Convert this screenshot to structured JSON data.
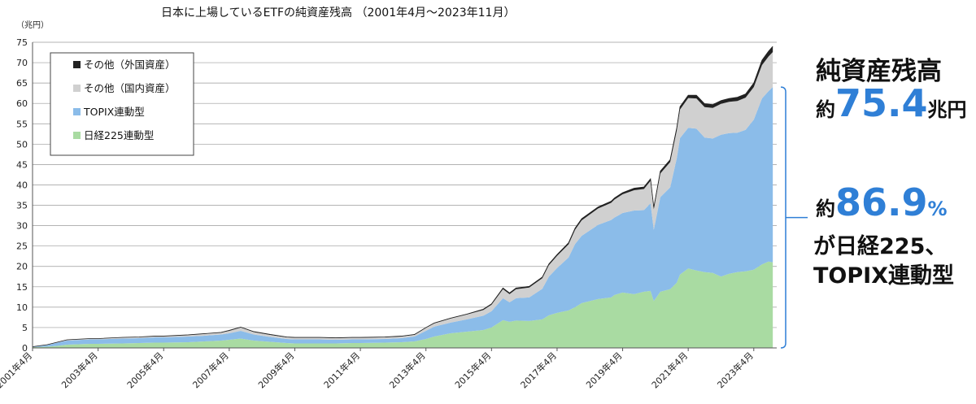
{
  "chart_data": {
    "type": "area",
    "stacked": true,
    "title": "日本に上場しているETFの純資産残高 （2001年4月～2023年11月）",
    "unit_label": "（兆円）",
    "ylim": [
      0,
      75
    ],
    "y_ticks": [
      0,
      5,
      10,
      15,
      20,
      25,
      30,
      35,
      40,
      45,
      50,
      55,
      60,
      65,
      70,
      75
    ],
    "x_ticks": [
      "2001年4月",
      "2003年4月",
      "2005年4月",
      "2007年4月",
      "2009年4月",
      "2011年4月",
      "2013年4月",
      "2015年4月",
      "2017年4月",
      "2019年4月",
      "2021年4月",
      "2023年4月"
    ],
    "legend_position": "top-left",
    "grid": true,
    "x": [
      2001.25,
      2001.7,
      2002.0,
      2002.3,
      2003.0,
      2003.25,
      2004.0,
      2004.5,
      2005.0,
      2005.25,
      2006.0,
      2006.5,
      2007.0,
      2007.25,
      2007.6,
      2008.0,
      2008.5,
      2009.0,
      2009.25,
      2010.0,
      2010.5,
      2011.0,
      2011.25,
      2012.0,
      2012.5,
      2012.9,
      2013.25,
      2013.5,
      2014.0,
      2014.5,
      2015.0,
      2015.25,
      2015.6,
      2015.8,
      2016.0,
      2016.4,
      2016.8,
      2017.0,
      2017.25,
      2017.6,
      2017.8,
      2018.0,
      2018.5,
      2018.9,
      2019.0,
      2019.25,
      2019.6,
      2019.9,
      2020.1,
      2020.2,
      2020.4,
      2020.7,
      2020.9,
      2021.0,
      2021.25,
      2021.5,
      2021.75,
      2022.0,
      2022.25,
      2022.5,
      2022.75,
      2023.0,
      2023.25,
      2023.5,
      2023.7,
      2023.83
    ],
    "series": [
      {
        "name": "日経225連動型",
        "color": "#a9dba2",
        "values": [
          0.2,
          0.3,
          0.5,
          0.8,
          1.0,
          1.0,
          1.1,
          1.2,
          1.3,
          1.3,
          1.4,
          1.6,
          1.8,
          2.0,
          2.3,
          1.8,
          1.5,
          1.2,
          1.1,
          1.1,
          1.1,
          1.2,
          1.2,
          1.3,
          1.4,
          1.6,
          2.2,
          2.8,
          3.6,
          4.0,
          4.4,
          5.0,
          6.8,
          6.4,
          6.7,
          6.6,
          7.0,
          8.0,
          8.6,
          9.2,
          10.0,
          11.0,
          12.0,
          12.4,
          13.0,
          13.6,
          13.2,
          13.8,
          14.0,
          11.5,
          13.8,
          14.4,
          16.0,
          18.0,
          19.5,
          19.0,
          18.6,
          18.4,
          17.5,
          18.2,
          18.6,
          18.8,
          19.2,
          20.5,
          21.2,
          21.0
        ]
      },
      {
        "name": "TOPIX連動型",
        "color": "#8bbce9",
        "values": [
          0.1,
          0.4,
          0.8,
          1.0,
          1.1,
          1.1,
          1.2,
          1.2,
          1.3,
          1.3,
          1.4,
          1.4,
          1.5,
          1.6,
          1.9,
          1.5,
          1.2,
          1.0,
          1.0,
          1.0,
          0.9,
          0.9,
          0.9,
          0.9,
          1.0,
          1.2,
          2.0,
          2.4,
          2.6,
          3.0,
          3.5,
          4.0,
          5.4,
          4.8,
          5.5,
          5.8,
          7.5,
          9.5,
          11.0,
          13.0,
          15.5,
          16.5,
          18.2,
          19.0,
          19.0,
          19.5,
          20.5,
          20.0,
          21.5,
          17.5,
          23.2,
          25.0,
          30.5,
          33.5,
          34.5,
          34.8,
          33.0,
          33.0,
          34.8,
          34.5,
          34.2,
          34.7,
          36.8,
          40.7,
          41.8,
          43.0
        ]
      },
      {
        "name": "その他（国内資産）",
        "color": "#d0d0d0",
        "values": [
          0.0,
          0.1,
          0.1,
          0.2,
          0.2,
          0.2,
          0.3,
          0.3,
          0.3,
          0.3,
          0.4,
          0.5,
          0.5,
          0.6,
          0.8,
          0.6,
          0.5,
          0.4,
          0.4,
          0.4,
          0.4,
          0.4,
          0.4,
          0.4,
          0.4,
          0.4,
          0.7,
          0.8,
          1.0,
          1.2,
          1.4,
          1.6,
          2.2,
          2.0,
          2.2,
          2.4,
          2.6,
          2.8,
          3.0,
          3.2,
          3.5,
          3.8,
          4.0,
          4.2,
          4.4,
          4.6,
          5.0,
          5.2,
          5.5,
          5.0,
          5.8,
          6.2,
          6.8,
          7.0,
          7.3,
          7.4,
          7.5,
          7.5,
          7.6,
          7.7,
          7.8,
          7.9,
          8.0,
          8.2,
          8.5,
          8.6
        ]
      },
      {
        "name": "その他（外国資産）",
        "color": "#222222",
        "values": [
          0.0,
          0.0,
          0.0,
          0.0,
          0.0,
          0.0,
          0.0,
          0.0,
          0.0,
          0.0,
          0.0,
          0.0,
          0.0,
          0.1,
          0.1,
          0.1,
          0.1,
          0.1,
          0.1,
          0.1,
          0.1,
          0.1,
          0.1,
          0.1,
          0.1,
          0.1,
          0.1,
          0.1,
          0.1,
          0.1,
          0.2,
          0.2,
          0.3,
          0.3,
          0.3,
          0.3,
          0.3,
          0.3,
          0.3,
          0.4,
          0.4,
          0.4,
          0.4,
          0.4,
          0.4,
          0.4,
          0.5,
          0.5,
          0.5,
          0.5,
          0.6,
          0.6,
          0.7,
          0.7,
          0.7,
          0.8,
          0.8,
          0.8,
          0.8,
          0.8,
          0.9,
          0.9,
          1.0,
          1.2,
          1.3,
          1.4
        ]
      }
    ]
  },
  "legend_order": [
    3,
    2,
    1,
    0
  ],
  "side_panel": {
    "total_title": "純資産残高",
    "total_prefix": "約",
    "total_value": "75.4",
    "total_unit": "兆円",
    "share_prefix": "約",
    "share_value": "86.9",
    "share_unit": "%",
    "share_line2": "が日経225、",
    "share_line3": "TOPIX連動型",
    "accent_color": "#2f7fd6"
  }
}
